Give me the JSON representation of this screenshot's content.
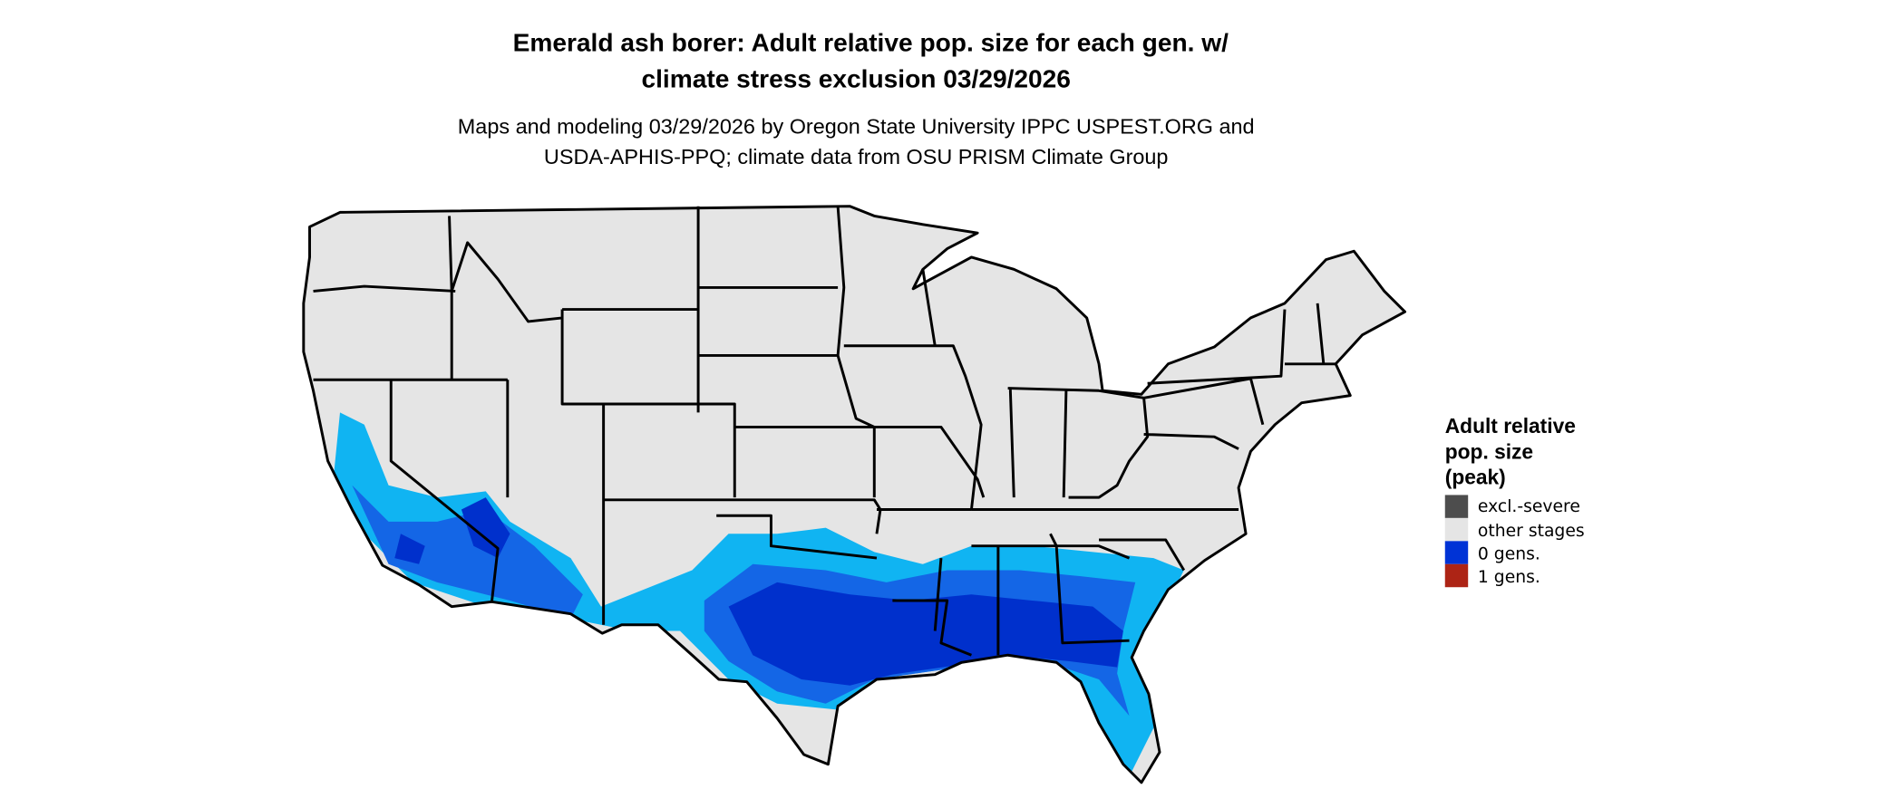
{
  "title_line1": "Emerald ash borer: Adult relative pop. size for each gen. w/",
  "title_line2": "climate stress exclusion 03/29/2026",
  "subtitle_line1": "Maps and modeling 03/29/2026 by Oregon State University IPPC USPEST.ORG and",
  "subtitle_line2": "USDA-APHIS-PPQ; climate data from OSU PRISM Climate Group",
  "legend": {
    "title_lines": [
      "Adult relative",
      "pop. size",
      "(peak)"
    ],
    "items": [
      {
        "label": "excl.-severe",
        "color": "#4d4d4d"
      },
      {
        "label": "other stages",
        "color": "#e5e5e5"
      },
      {
        "label": "0 gens.",
        "color": "#0033d6"
      },
      {
        "label": "1 gens.",
        "color": "#ad2415"
      }
    ]
  },
  "map_colors": {
    "land": "#e5e5e5",
    "light_blue": "#10b4f2",
    "mid_blue": "#1466e6",
    "dark_blue": "#0030cc"
  }
}
